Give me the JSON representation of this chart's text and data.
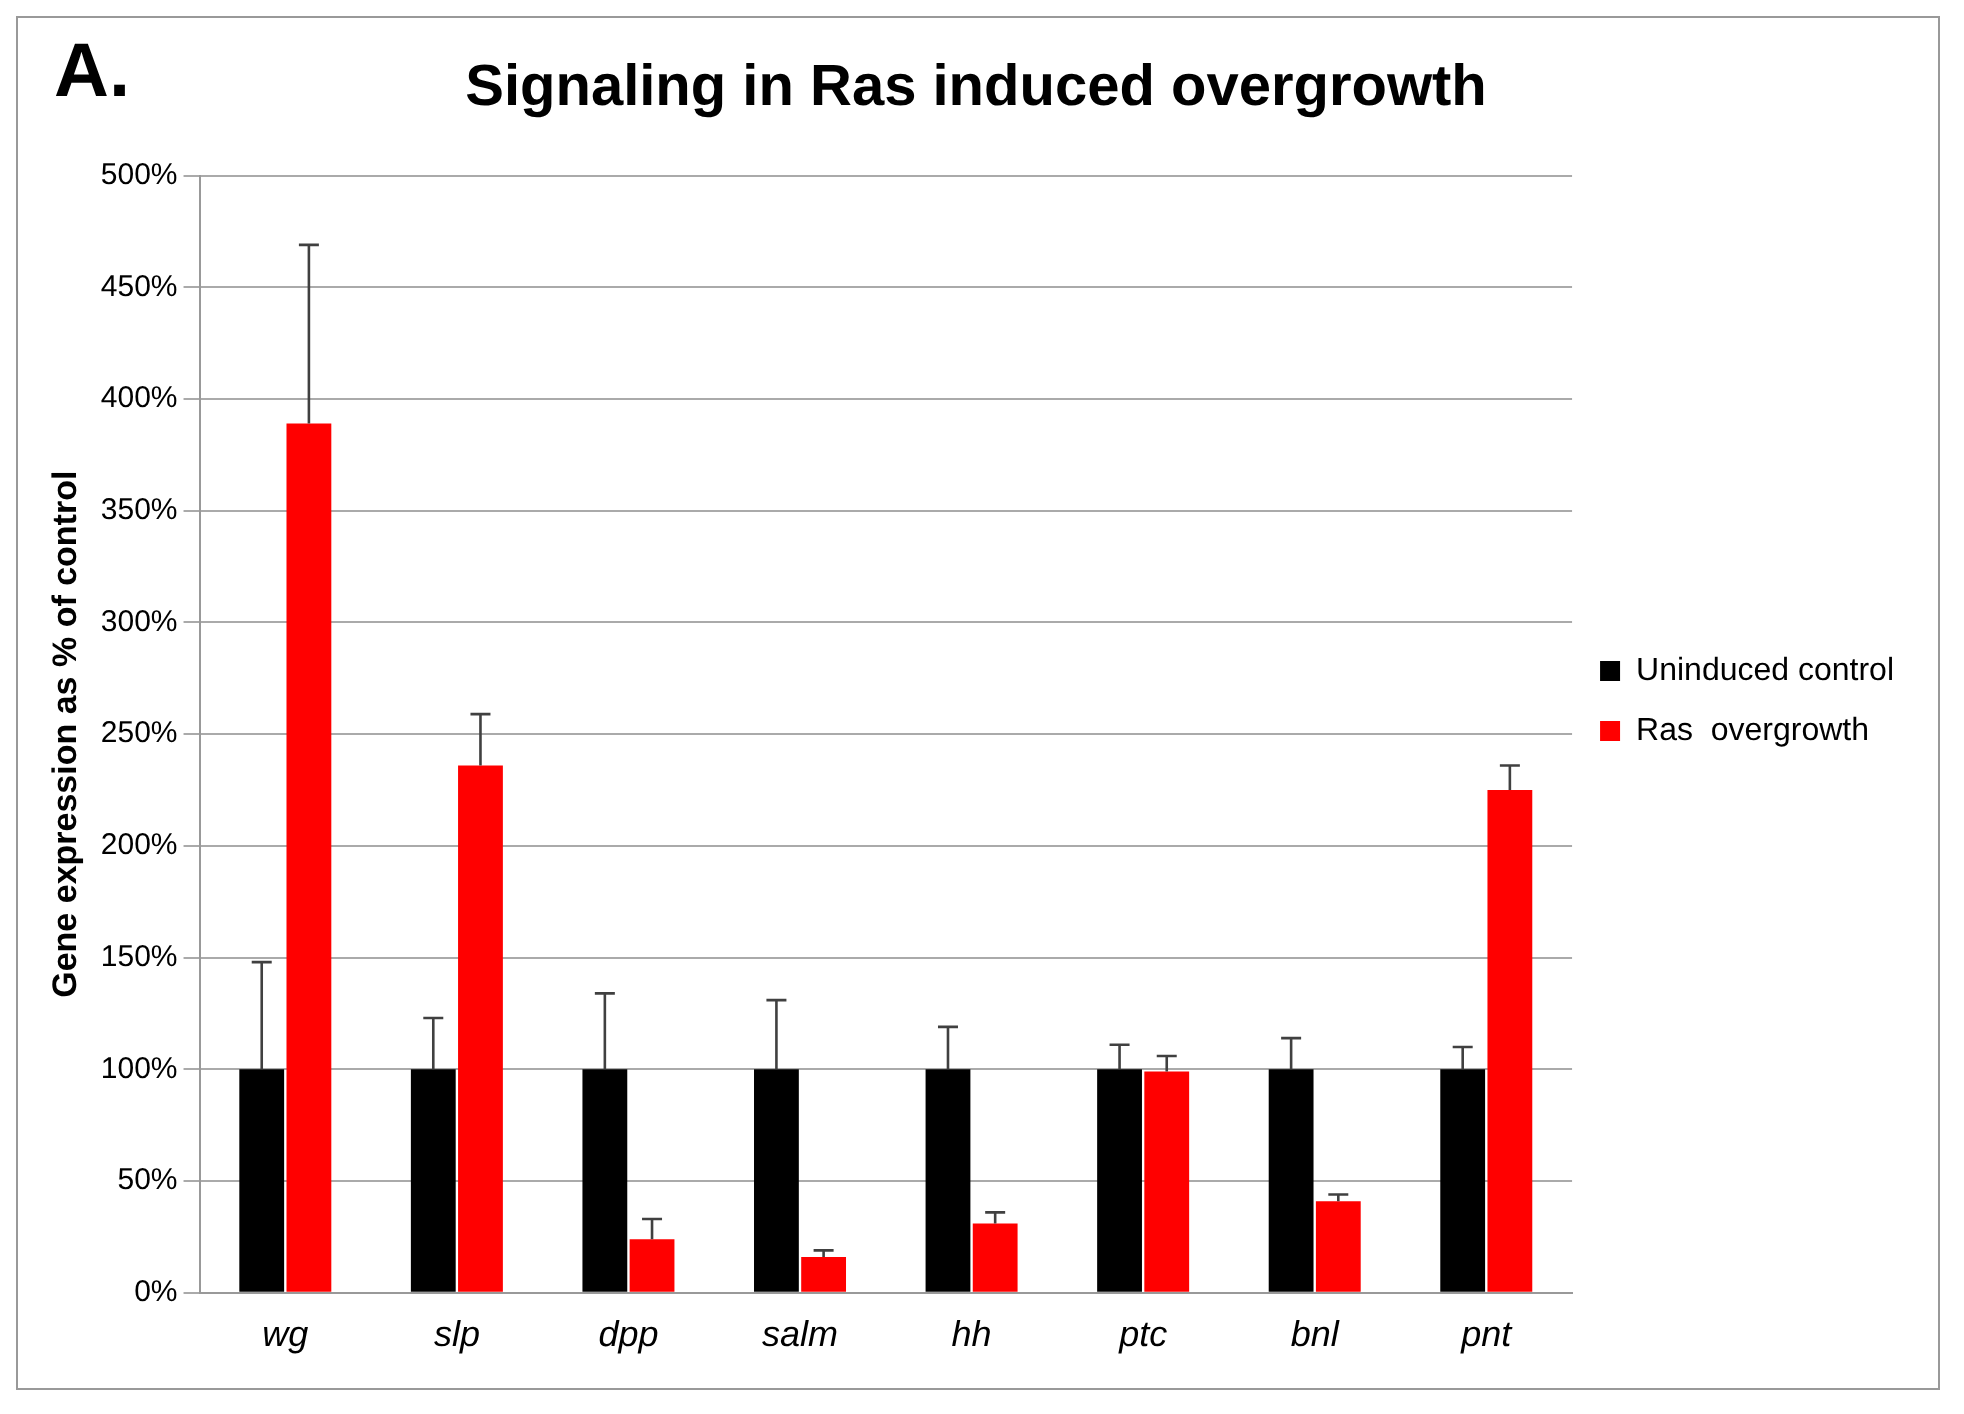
{
  "chart_data": {
    "type": "bar",
    "title": "Signaling in Ras induced overgrowth",
    "ylabel": "Gene expression as % of control",
    "annotations": [
      "A."
    ],
    "categories": [
      "wg",
      "slp",
      "dpp",
      "salm",
      "hh",
      "ptc",
      "bnl",
      "pnt"
    ],
    "series": [
      {
        "name": "Uninduced control",
        "color": "#000000",
        "values": [
          100,
          100,
          100,
          100,
          100,
          100,
          100,
          100
        ],
        "errors": [
          [
            100,
            148
          ],
          [
            100,
            123
          ],
          [
            100,
            134
          ],
          [
            100,
            131
          ],
          [
            100,
            119
          ],
          [
            100,
            111
          ],
          [
            100,
            114
          ],
          [
            100,
            110
          ]
        ]
      },
      {
        "name": "Ras  overgrowth",
        "color": "#ff0000",
        "values": [
          389,
          236,
          24,
          16,
          31,
          99,
          41,
          225
        ],
        "errors": [
          [
            389,
            469
          ],
          [
            236,
            259
          ],
          [
            24,
            33
          ],
          [
            16,
            19
          ],
          [
            31,
            36
          ],
          [
            99,
            106
          ],
          [
            41,
            44
          ],
          [
            225,
            236
          ]
        ]
      }
    ],
    "ylim": [
      0,
      500
    ],
    "yticks": [
      {
        "value": 0,
        "label": "0%"
      },
      {
        "value": 50,
        "label": "50%"
      },
      {
        "value": 100,
        "label": "100%"
      },
      {
        "value": 150,
        "label": "150%"
      },
      {
        "value": 200,
        "label": "200%"
      },
      {
        "value": 250,
        "label": "250%"
      },
      {
        "value": 300,
        "label": "300%"
      },
      {
        "value": 350,
        "label": "350%"
      },
      {
        "value": 400,
        "label": "400%"
      },
      {
        "value": 450,
        "label": "450%"
      },
      {
        "value": 500,
        "label": "500%"
      }
    ],
    "grid": "y",
    "legend": "right"
  }
}
